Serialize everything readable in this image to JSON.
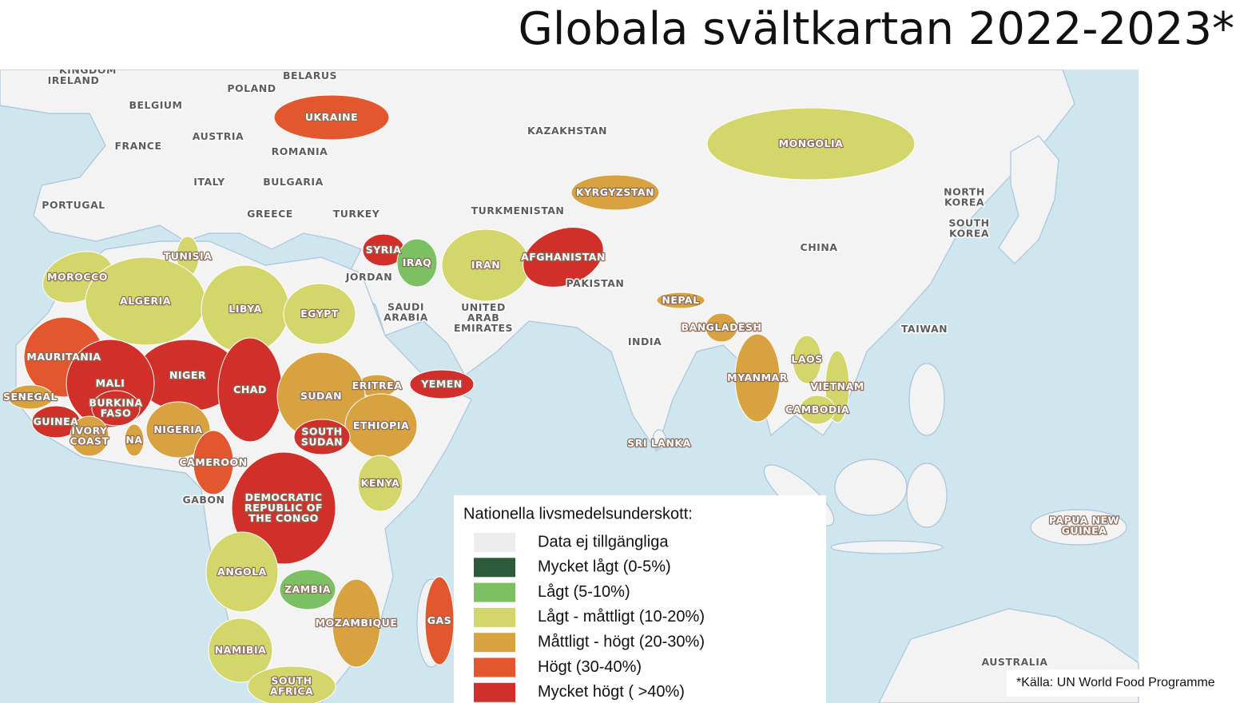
{
  "header": {
    "title": "Globala svältkartan 2022-2023*"
  },
  "map": {
    "countries": [
      {
        "lines": [
          "KINGDOM"
        ],
        "level": 0
      },
      {
        "lines": [
          "IRELAND"
        ],
        "level": 0
      },
      {
        "lines": [
          "BELGIUM"
        ],
        "level": 0
      },
      {
        "lines": [
          "POLAND"
        ],
        "level": 0
      },
      {
        "lines": [
          "BELARUS"
        ],
        "level": 0
      },
      {
        "lines": [
          "UKRAINE"
        ],
        "level": 5
      },
      {
        "lines": [
          "FRANCE"
        ],
        "level": 0
      },
      {
        "lines": [
          "AUSTRIA"
        ],
        "level": 0
      },
      {
        "lines": [
          "ROMANIA"
        ],
        "level": 0
      },
      {
        "lines": [
          "ITALY"
        ],
        "level": 0
      },
      {
        "lines": [
          "BULGARIA"
        ],
        "level": 0
      },
      {
        "lines": [
          "PORTUGAL"
        ],
        "level": 0
      },
      {
        "lines": [
          "GREECE"
        ],
        "level": 0
      },
      {
        "lines": [
          "TURKEY"
        ],
        "level": 0
      },
      {
        "lines": [
          "KAZAKHSTAN"
        ],
        "level": 0
      },
      {
        "lines": [
          "MONGOLIA"
        ],
        "level": 3
      },
      {
        "lines": [
          "KYRGYZSTAN"
        ],
        "level": 4
      },
      {
        "lines": [
          "TURKMENISTAN"
        ],
        "level": 0
      },
      {
        "lines": [
          "NORTH",
          "KOREA"
        ],
        "level": 0
      },
      {
        "lines": [
          "SOUTH",
          "KOREA"
        ],
        "level": 0
      },
      {
        "lines": [
          "CHINA"
        ],
        "level": 0
      },
      {
        "lines": [
          "TUNISIA"
        ],
        "level": 3
      },
      {
        "lines": [
          "SYRIA"
        ],
        "level": 6
      },
      {
        "lines": [
          "IRAQ"
        ],
        "level": 2
      },
      {
        "lines": [
          "IRAN"
        ],
        "level": 3
      },
      {
        "lines": [
          "AFGHANISTAN"
        ],
        "level": 6
      },
      {
        "lines": [
          "MOROCCO"
        ],
        "level": 3
      },
      {
        "lines": [
          "JORDAN"
        ],
        "level": 0
      },
      {
        "lines": [
          "PAKISTAN"
        ],
        "level": 0
      },
      {
        "lines": [
          "ALGERIA"
        ],
        "level": 3
      },
      {
        "lines": [
          "LIBYA"
        ],
        "level": 3
      },
      {
        "lines": [
          "EGYPT"
        ],
        "level": 3
      },
      {
        "lines": [
          "SAUDI",
          "ARABIA"
        ],
        "level": 0
      },
      {
        "lines": [
          "UNITED",
          "ARAB",
          "EMIRATES"
        ],
        "level": 0
      },
      {
        "lines": [
          "NEPAL"
        ],
        "level": 4
      },
      {
        "lines": [
          "BANGLADESH"
        ],
        "level": 4
      },
      {
        "lines": [
          "TAIWAN"
        ],
        "level": 0
      },
      {
        "lines": [
          "INDIA"
        ],
        "level": 0
      },
      {
        "lines": [
          "MAURITANIA"
        ],
        "level": 5
      },
      {
        "lines": [
          "LAOS"
        ],
        "level": 3
      },
      {
        "lines": [
          "NIGER"
        ],
        "level": 6
      },
      {
        "lines": [
          "MYANMAR"
        ],
        "level": 4
      },
      {
        "lines": [
          "MALI"
        ],
        "level": 6
      },
      {
        "lines": [
          "ERITREA"
        ],
        "level": 4
      },
      {
        "lines": [
          "YEMEN"
        ],
        "level": 6
      },
      {
        "lines": [
          "VIETNAM"
        ],
        "level": 3
      },
      {
        "lines": [
          "CHAD"
        ],
        "level": 6
      },
      {
        "lines": [
          "SUDAN"
        ],
        "level": 4
      },
      {
        "lines": [
          "SENEGAL"
        ],
        "level": 4
      },
      {
        "lines": [
          "BURKINA",
          "FASO"
        ],
        "level": 6
      },
      {
        "lines": [
          "CAMBODIA"
        ],
        "level": 3
      },
      {
        "lines": [
          "GUINEA"
        ],
        "level": 6
      },
      {
        "lines": [
          "ETHIOPIA"
        ],
        "level": 4
      },
      {
        "lines": [
          "NIGERIA"
        ],
        "level": 4
      },
      {
        "lines": [
          "IVORY",
          "COAST"
        ],
        "level": 4
      },
      {
        "lines": [
          "NA"
        ],
        "level": 4
      },
      {
        "lines": [
          "SOUTH",
          "SUDAN"
        ],
        "level": 6
      },
      {
        "lines": [
          "SRI LANKA"
        ],
        "level": 4
      },
      {
        "lines": [
          "CAMEROON"
        ],
        "level": 5
      },
      {
        "lines": [
          "KENYA"
        ],
        "level": 3
      },
      {
        "lines": [
          "GABON"
        ],
        "level": 0
      },
      {
        "lines": [
          "DEMOCRATIC",
          "REPUBLIC OF",
          "THE CONGO"
        ],
        "level": 6
      },
      {
        "lines": [
          "PAPUA NEW",
          "GUINEA"
        ],
        "level": 3
      },
      {
        "lines": [
          "ANGOLA"
        ],
        "level": 3
      },
      {
        "lines": [
          "ZAMBIA"
        ],
        "level": 2
      },
      {
        "lines": [
          "MOZAMBIQUE"
        ],
        "level": 4
      },
      {
        "lines": [
          "GAS"
        ],
        "level": 5
      },
      {
        "lines": [
          "NAMIBIA"
        ],
        "level": 3
      },
      {
        "lines": [
          "AUSTRALIA"
        ],
        "level": 0
      },
      {
        "lines": [
          "SOUTH",
          "AFRICA"
        ],
        "level": 3
      }
    ]
  },
  "legend": {
    "title": "Nationella livsmedelsunderskott:",
    "items": [
      {
        "label": "Data ej tillgängliga",
        "color": "#ededed"
      },
      {
        "label": "Mycket lågt (0-5%)",
        "color": "#2c5a3a"
      },
      {
        "label": "Lågt (5-10%)",
        "color": "#7cc063"
      },
      {
        "label": "Lågt - måttligt (10-20%)",
        "color": "#d3d66a"
      },
      {
        "label": "Måttligt - högt (20-30%)",
        "color": "#d9a241"
      },
      {
        "label": "Högt (30-40%)",
        "color": "#e2572e"
      },
      {
        "label": "Mycket högt ( >40%)",
        "color": "#d1302a"
      }
    ]
  },
  "source": "*Källa: UN World Food Programme"
}
